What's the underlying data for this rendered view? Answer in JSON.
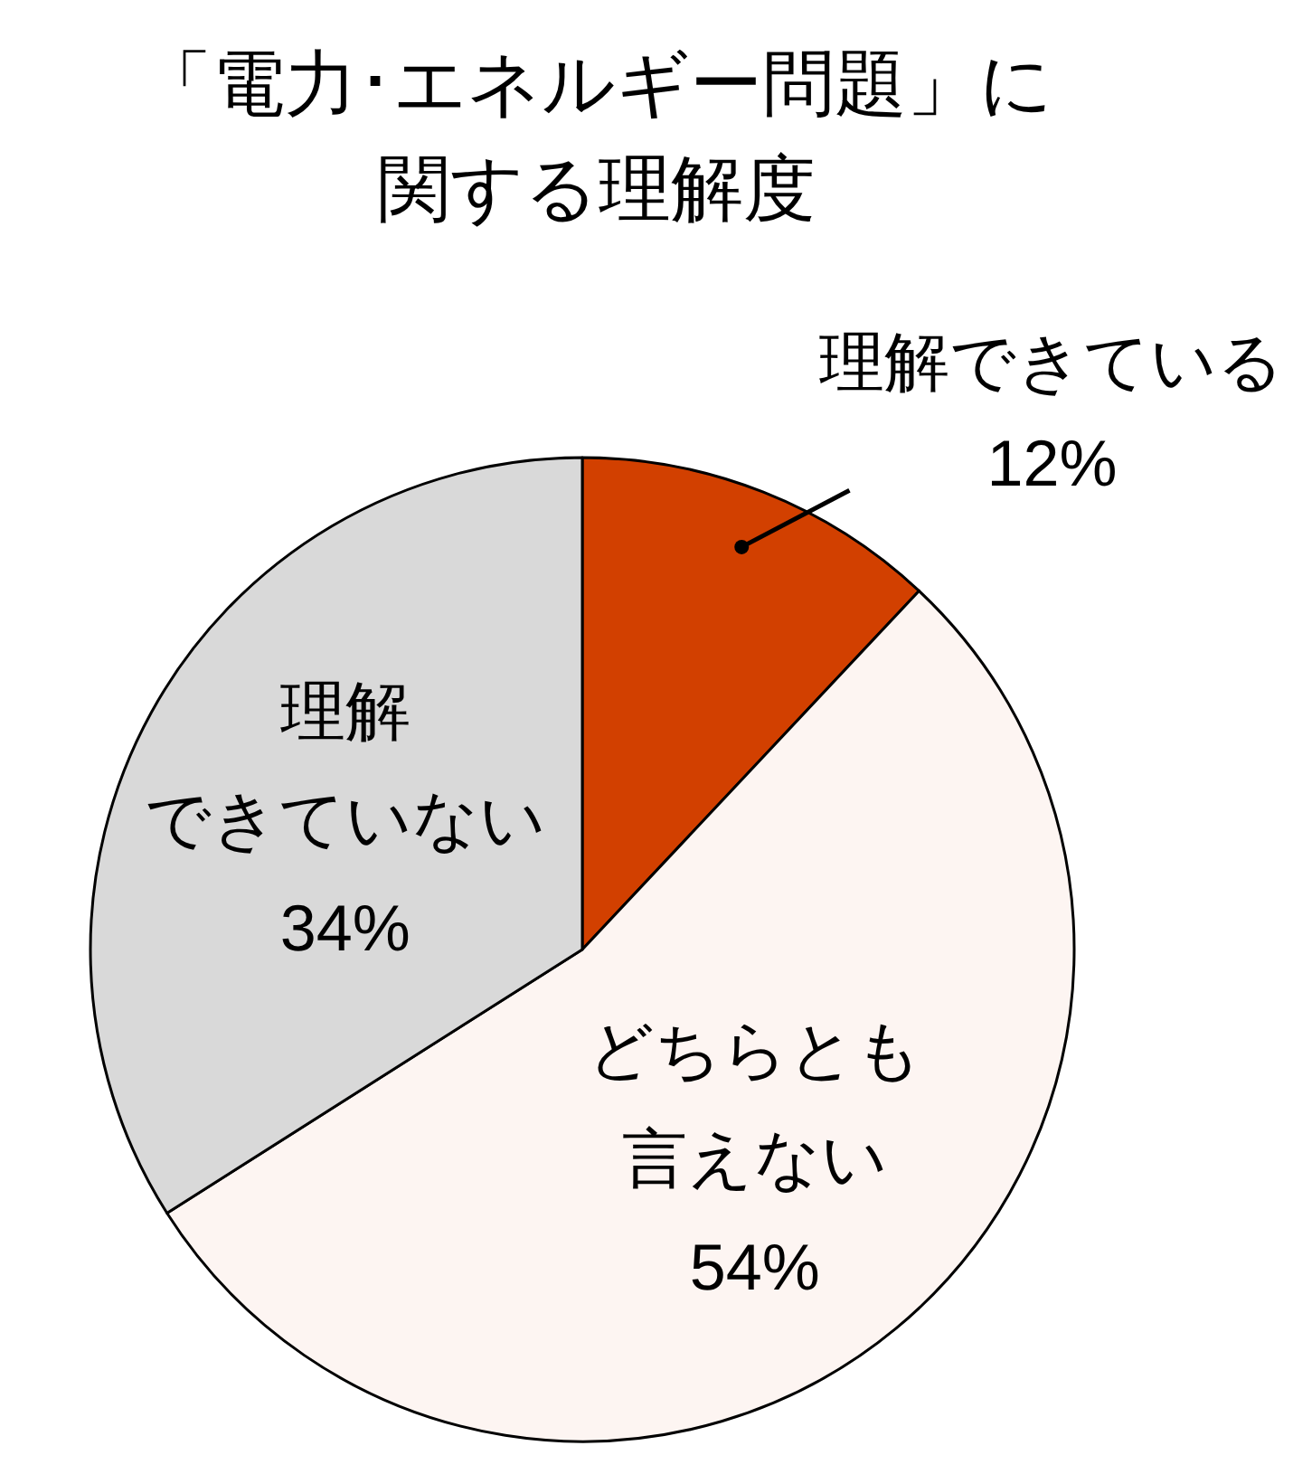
{
  "chart_data": {
    "type": "pie",
    "title": "「電力･エネルギー問題」に関する理解度",
    "categories": [
      "理解できている",
      "どちらとも言えない",
      "理解できていない"
    ],
    "values": [
      12,
      54,
      34
    ],
    "value_labels": [
      "12%",
      "54%",
      "34%"
    ],
    "colors": [
      "#d24000",
      "#fdf5f2",
      "#d9d9d9"
    ],
    "data_labels": true,
    "legend": false
  }
}
